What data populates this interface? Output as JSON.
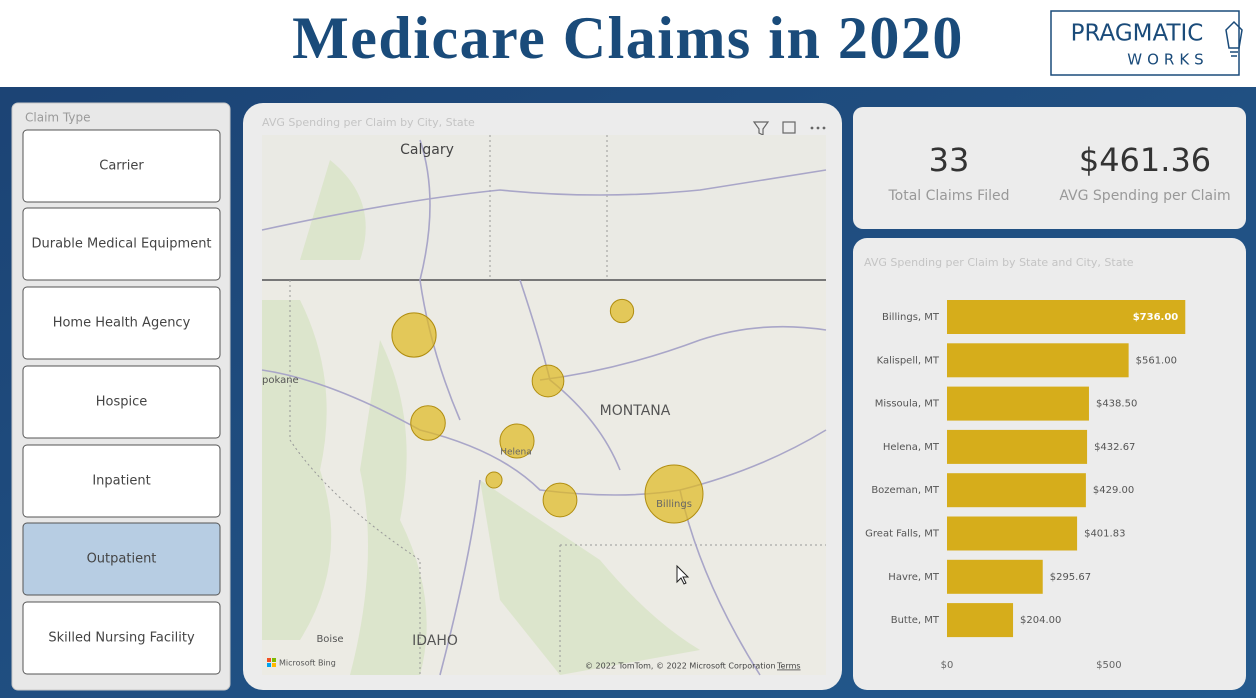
{
  "header": {
    "title": "Medicare Claims in 2020",
    "logo": [
      "PRAGMATIC",
      "WORKS"
    ]
  },
  "slicer": {
    "title": "Claim Type",
    "items": [
      "Carrier",
      "Durable Medical Equipment",
      "Home Health Agency",
      "Hospice",
      "Inpatient",
      "Outpatient",
      "Skilled Nursing Facility"
    ],
    "selected": "Outpatient"
  },
  "map": {
    "title": "AVG Spending per Claim by City, State",
    "labels": [
      "Calgary",
      "MONTANA",
      "IDAHO",
      "Boise",
      "Helena",
      "Billings",
      "pokane"
    ],
    "brand": "Microsoft Bing",
    "attribution": "© 2022 TomTom, © 2022 Microsoft Corporation",
    "terms": "Terms"
  },
  "cards": [
    {
      "value": "33",
      "label": "Total Claims Filed"
    },
    {
      "value": "$461.36",
      "label": "AVG Spending per Claim"
    }
  ],
  "bar_chart": {
    "type": "bar",
    "title": "AVG Spending per Claim by State and City, State",
    "categories": [
      "Billings, MT",
      "Kalispell, MT",
      "Missoula, MT",
      "Helena, MT",
      "Bozeman, MT",
      "Great Falls, MT",
      "Havre, MT",
      "Butte, MT"
    ],
    "values": [
      736,
      561,
      438.5,
      432.67,
      429,
      401.83,
      295.67,
      204
    ],
    "value_labels": [
      "$736.00",
      "$561.00",
      "$438.50",
      "$432.67",
      "$429.00",
      "$401.83",
      "$295.67",
      "$204.00"
    ],
    "color": "#d6ad1b",
    "xlim": [
      0,
      800
    ],
    "xticks": [
      {
        "value": 0,
        "label": "$0"
      },
      {
        "value": 500,
        "label": "$500"
      }
    ]
  }
}
